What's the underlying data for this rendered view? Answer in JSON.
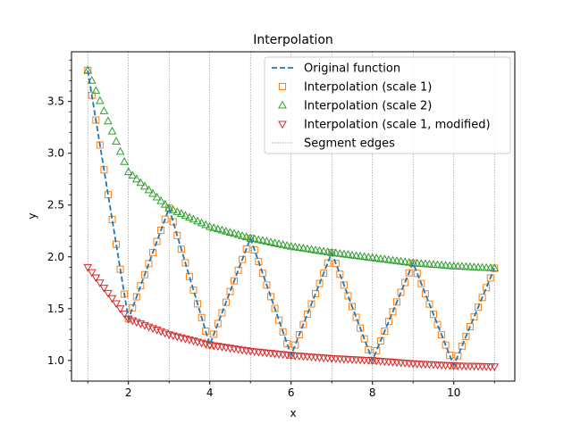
{
  "chart_data": {
    "type": "line",
    "title": "Interpolation",
    "xlabel": "x",
    "ylabel": "y",
    "xlim": [
      0.6,
      11.5
    ],
    "ylim": [
      0.8,
      3.98
    ],
    "x_ticks": [
      2,
      4,
      6,
      8,
      10
    ],
    "x_tick_labels": [
      "2",
      "4",
      "6",
      "8",
      "10"
    ],
    "y_ticks": [
      1.0,
      1.5,
      2.0,
      2.5,
      3.0,
      3.5
    ],
    "y_tick_labels": [
      "1.0",
      "1.5",
      "2.0",
      "2.5",
      "3.0",
      "3.5"
    ],
    "legend_position": "upper-right",
    "segment_edges": [
      1,
      2,
      3,
      4,
      5,
      6,
      7,
      8,
      9,
      10,
      11
    ],
    "series": [
      {
        "name": "Original function",
        "style": "dashed-line",
        "color": "#1f77b4",
        "x": [
          1,
          2,
          3,
          4,
          5,
          6,
          7,
          8,
          9,
          10,
          11
        ],
        "y": [
          3.8,
          1.4,
          2.47,
          1.15,
          2.18,
          1.05,
          2.04,
          1.0,
          1.94,
          0.95,
          1.89
        ]
      },
      {
        "name": "Interpolation (scale 1)",
        "style": "square-markers",
        "color": "#ff7f0e",
        "x_start": 1,
        "x_end": 11,
        "points": 101,
        "y_knots": [
          3.8,
          1.4,
          2.47,
          1.15,
          2.18,
          1.05,
          2.04,
          1.0,
          1.94,
          0.95,
          1.89
        ]
      },
      {
        "name": "Interpolation (scale 2)",
        "style": "triangle-up-markers",
        "color": "#2ca02c",
        "x_start": 1,
        "x_end": 11,
        "points": 101,
        "y_knots": [
          3.8,
          2.82,
          2.47,
          2.29,
          2.18,
          2.1,
          2.04,
          1.99,
          1.94,
          1.91,
          1.89
        ]
      },
      {
        "name": "Interpolation (scale 1, modified)",
        "style": "triangle-down-markers",
        "color": "#d62728",
        "x_start": 1,
        "x_end": 11,
        "points": 101,
        "y_knots": [
          1.9,
          1.4,
          1.25,
          1.15,
          1.09,
          1.05,
          1.02,
          1.0,
          0.97,
          0.95,
          0.94
        ]
      },
      {
        "name": "Segment edges",
        "style": "vertical-dotted-lines",
        "color": "#808080"
      }
    ]
  }
}
